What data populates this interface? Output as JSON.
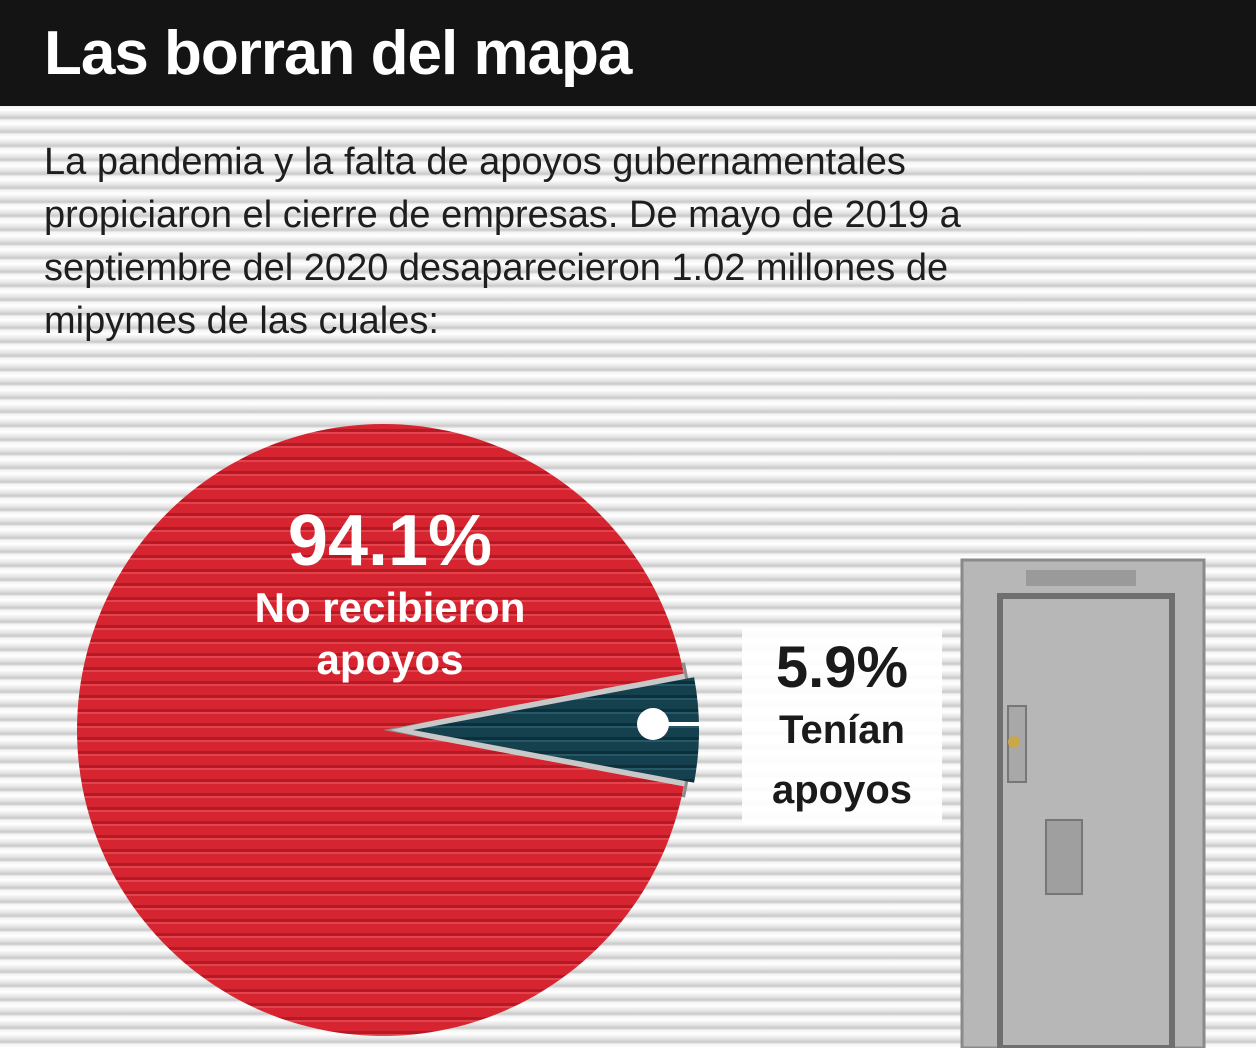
{
  "header": {
    "title": "Las borran del mapa"
  },
  "intro": "La pandemia y la falta de apoyos gubernamentales propiciaron el cierre de empresas. De mayo de 2019 a septiembre del 2020 desaparecieron 1.02 millones de mipymes de las cuales:",
  "chart_data": {
    "type": "pie",
    "slices": [
      {
        "label": "No recibieron\napoyos",
        "value": 94.1,
        "display": "94.1%",
        "color": "#d62530"
      },
      {
        "label": "Tenían\napoyos",
        "value": 5.9,
        "display": "5.9%",
        "color": "#15414f"
      }
    ]
  }
}
